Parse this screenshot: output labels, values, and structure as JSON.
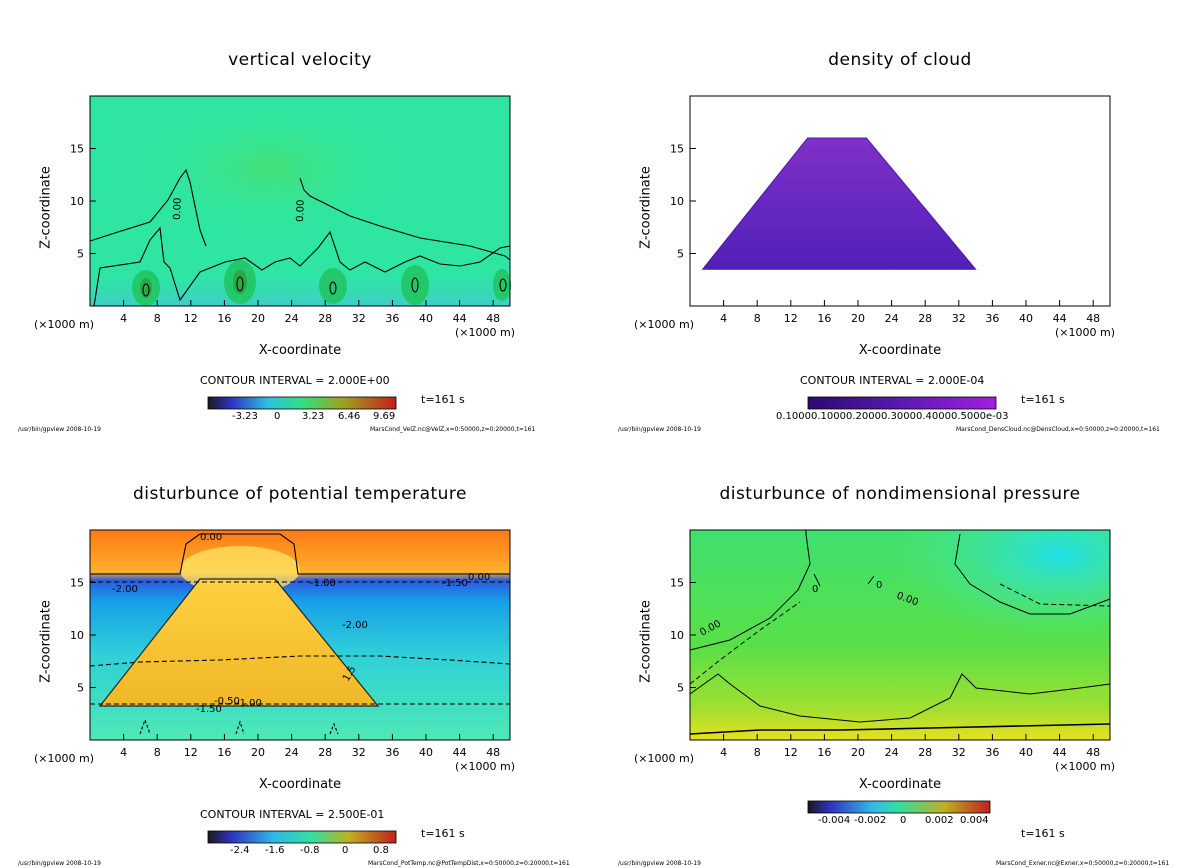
{
  "chart_data": [
    {
      "type": "heatmap",
      "title": "vertical velocity",
      "xlabel": "X-coordinate",
      "ylabel": "Z-coordinate",
      "x_unit_left": "(×1000 m)",
      "x_unit_right": "(×1000 m)",
      "xlim": [
        0,
        50
      ],
      "ylim": [
        0,
        20
      ],
      "xticks": [
        "4",
        "8",
        "12",
        "16",
        "20",
        "24",
        "28",
        "32",
        "36",
        "40",
        "44",
        "48"
      ],
      "yticks": [
        "5",
        "10",
        "15"
      ],
      "contour_interval": "CONTOUR INTERVAL = 2.000E+00",
      "contour_labels": [
        "0.00",
        "0.00"
      ],
      "colorbar_ticks": [
        "-3.23",
        "0",
        "3.23",
        "6.46",
        "9.69"
      ],
      "time": "t=161 s",
      "footer_left": "/usr/bin/gpview  2008-10-19",
      "footer_right": "MarsCond_VelZ.nc@VelZ,x=0:50000,z=0:20000,t=161"
    },
    {
      "type": "heatmap",
      "title": "density of cloud",
      "xlabel": "X-coordinate",
      "ylabel": "Z-coordinate",
      "x_unit_left": "(×1000 m)",
      "x_unit_right": "(×1000 m)",
      "xlim": [
        0,
        50
      ],
      "ylim": [
        0,
        20
      ],
      "xticks": [
        "4",
        "8",
        "12",
        "16",
        "20",
        "24",
        "28",
        "32",
        "36",
        "40",
        "44",
        "48"
      ],
      "yticks": [
        "5",
        "10",
        "15"
      ],
      "cloud_region_x": [
        1.5,
        14,
        21,
        34
      ],
      "cloud_region_z": [
        3.5,
        16,
        16,
        3.5
      ],
      "contour_interval": "CONTOUR INTERVAL = 2.000E-04",
      "colorbar_ticks": [
        "0.10000.10000.20000.30000.40000.5000e-03"
      ],
      "time": "t=161 s",
      "footer_left": "/usr/bin/gpview  2008-10-19",
      "footer_right": "MarsCond_DensCloud.nc@DensCloud,x=0:50000,z=0:20000,t=161"
    },
    {
      "type": "heatmap",
      "title": "disturbunce of potential temperature",
      "xlabel": "X-coordinate",
      "ylabel": "Z-coordinate",
      "x_unit_left": "(×1000 m)",
      "x_unit_right": "(×1000 m)",
      "xlim": [
        0,
        50
      ],
      "ylim": [
        0,
        20
      ],
      "xticks": [
        "4",
        "8",
        "12",
        "16",
        "20",
        "24",
        "28",
        "32",
        "36",
        "40",
        "44",
        "48"
      ],
      "yticks": [
        "5",
        "10",
        "15"
      ],
      "contour_labels": [
        "0.00",
        "-2.00",
        "-1.00",
        "-2.00",
        "0.00",
        "-1.50",
        "-0.50",
        "-1.00",
        "-1.50",
        "1.5"
      ],
      "contour_interval": "CONTOUR INTERVAL = 2.500E-01",
      "colorbar_ticks": [
        "-2.4",
        "-1.6",
        "-0.8",
        "0",
        "0.8"
      ],
      "time": "t=161 s",
      "footer_left": "/usr/bin/gpview  2008-10-19",
      "footer_right": "MarsCond_PotTemp.nc@PotTempDist,x=0:50000,z=0:20000,t=161"
    },
    {
      "type": "heatmap",
      "title": "disturbunce of nondimensional pressure",
      "xlabel": "X-coordinate",
      "ylabel": "Z-coordinate",
      "x_unit_left": "(×1000 m)",
      "x_unit_right": "(×1000 m)",
      "xlim": [
        0,
        50
      ],
      "ylim": [
        0,
        20
      ],
      "xticks": [
        "4",
        "8",
        "12",
        "16",
        "20",
        "24",
        "28",
        "32",
        "36",
        "40",
        "44",
        "48"
      ],
      "yticks": [
        "5",
        "10",
        "15"
      ],
      "contour_labels": [
        "0.00",
        "0.00",
        "0",
        "0"
      ],
      "colorbar_ticks": [
        "-0.004",
        "-0.002",
        "0",
        "0.002",
        "0.004"
      ],
      "time": "t=161 s",
      "footer_left": "/usr/bin/gpview  2008-10-19",
      "footer_right": "MarsCond_Exner.nc@Exner,x=0:50000,z=0:20000,t=161"
    }
  ]
}
